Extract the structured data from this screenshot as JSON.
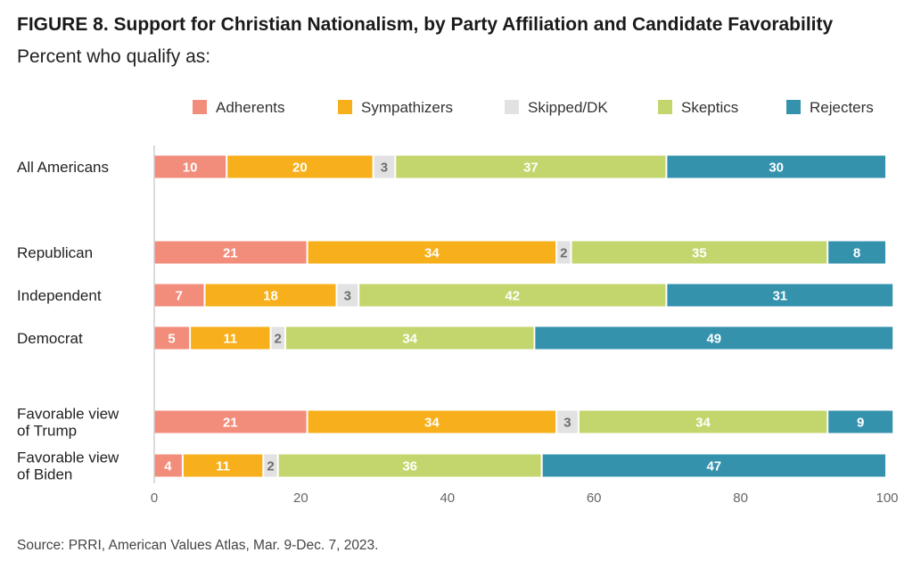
{
  "title": "FIGURE 8.  Support for Christian Nationalism, by Party Affiliation and Candidate Favorability",
  "subtitle": "Percent who qualify as:",
  "source": "Source: PRRI, American Values Atlas, Mar. 9-Dec. 7, 2023.",
  "chart_data": {
    "type": "bar",
    "orientation": "horizontal",
    "stacked": true,
    "xlim": [
      0,
      100
    ],
    "xticks": [
      0,
      20,
      40,
      60,
      80,
      100
    ],
    "grid": false,
    "legend_position": "top-right",
    "categories": [
      {
        "label": [
          "All Americans"
        ],
        "group": 0
      },
      {
        "label": [
          "Republican"
        ],
        "group": 1
      },
      {
        "label": [
          "Independent"
        ],
        "group": 1
      },
      {
        "label": [
          "Democrat"
        ],
        "group": 1
      },
      {
        "label": [
          "Favorable view",
          "of Trump"
        ],
        "group": 2
      },
      {
        "label": [
          "Favorable view",
          "of Biden"
        ],
        "group": 2
      }
    ],
    "series": [
      {
        "name": "Adherents",
        "color": "#f28c7b",
        "text_color": "#ffffff",
        "values": [
          10,
          21,
          7,
          5,
          21,
          4
        ]
      },
      {
        "name": "Sympathizers",
        "color": "#f7af1b",
        "text_color": "#ffffff",
        "values": [
          20,
          34,
          18,
          11,
          34,
          11
        ]
      },
      {
        "name": "Skipped/DK",
        "color": "#e2e2e2",
        "text_color": "#6d6d6d",
        "values": [
          3,
          2,
          3,
          2,
          3,
          2
        ]
      },
      {
        "name": "Skeptics",
        "color": "#c3d66d",
        "text_color": "#ffffff",
        "values": [
          37,
          35,
          42,
          34,
          34,
          36
        ]
      },
      {
        "name": "Rejecters",
        "color": "#3592ad",
        "text_color": "#ffffff",
        "values": [
          30,
          8,
          31,
          49,
          9,
          47
        ]
      }
    ]
  }
}
